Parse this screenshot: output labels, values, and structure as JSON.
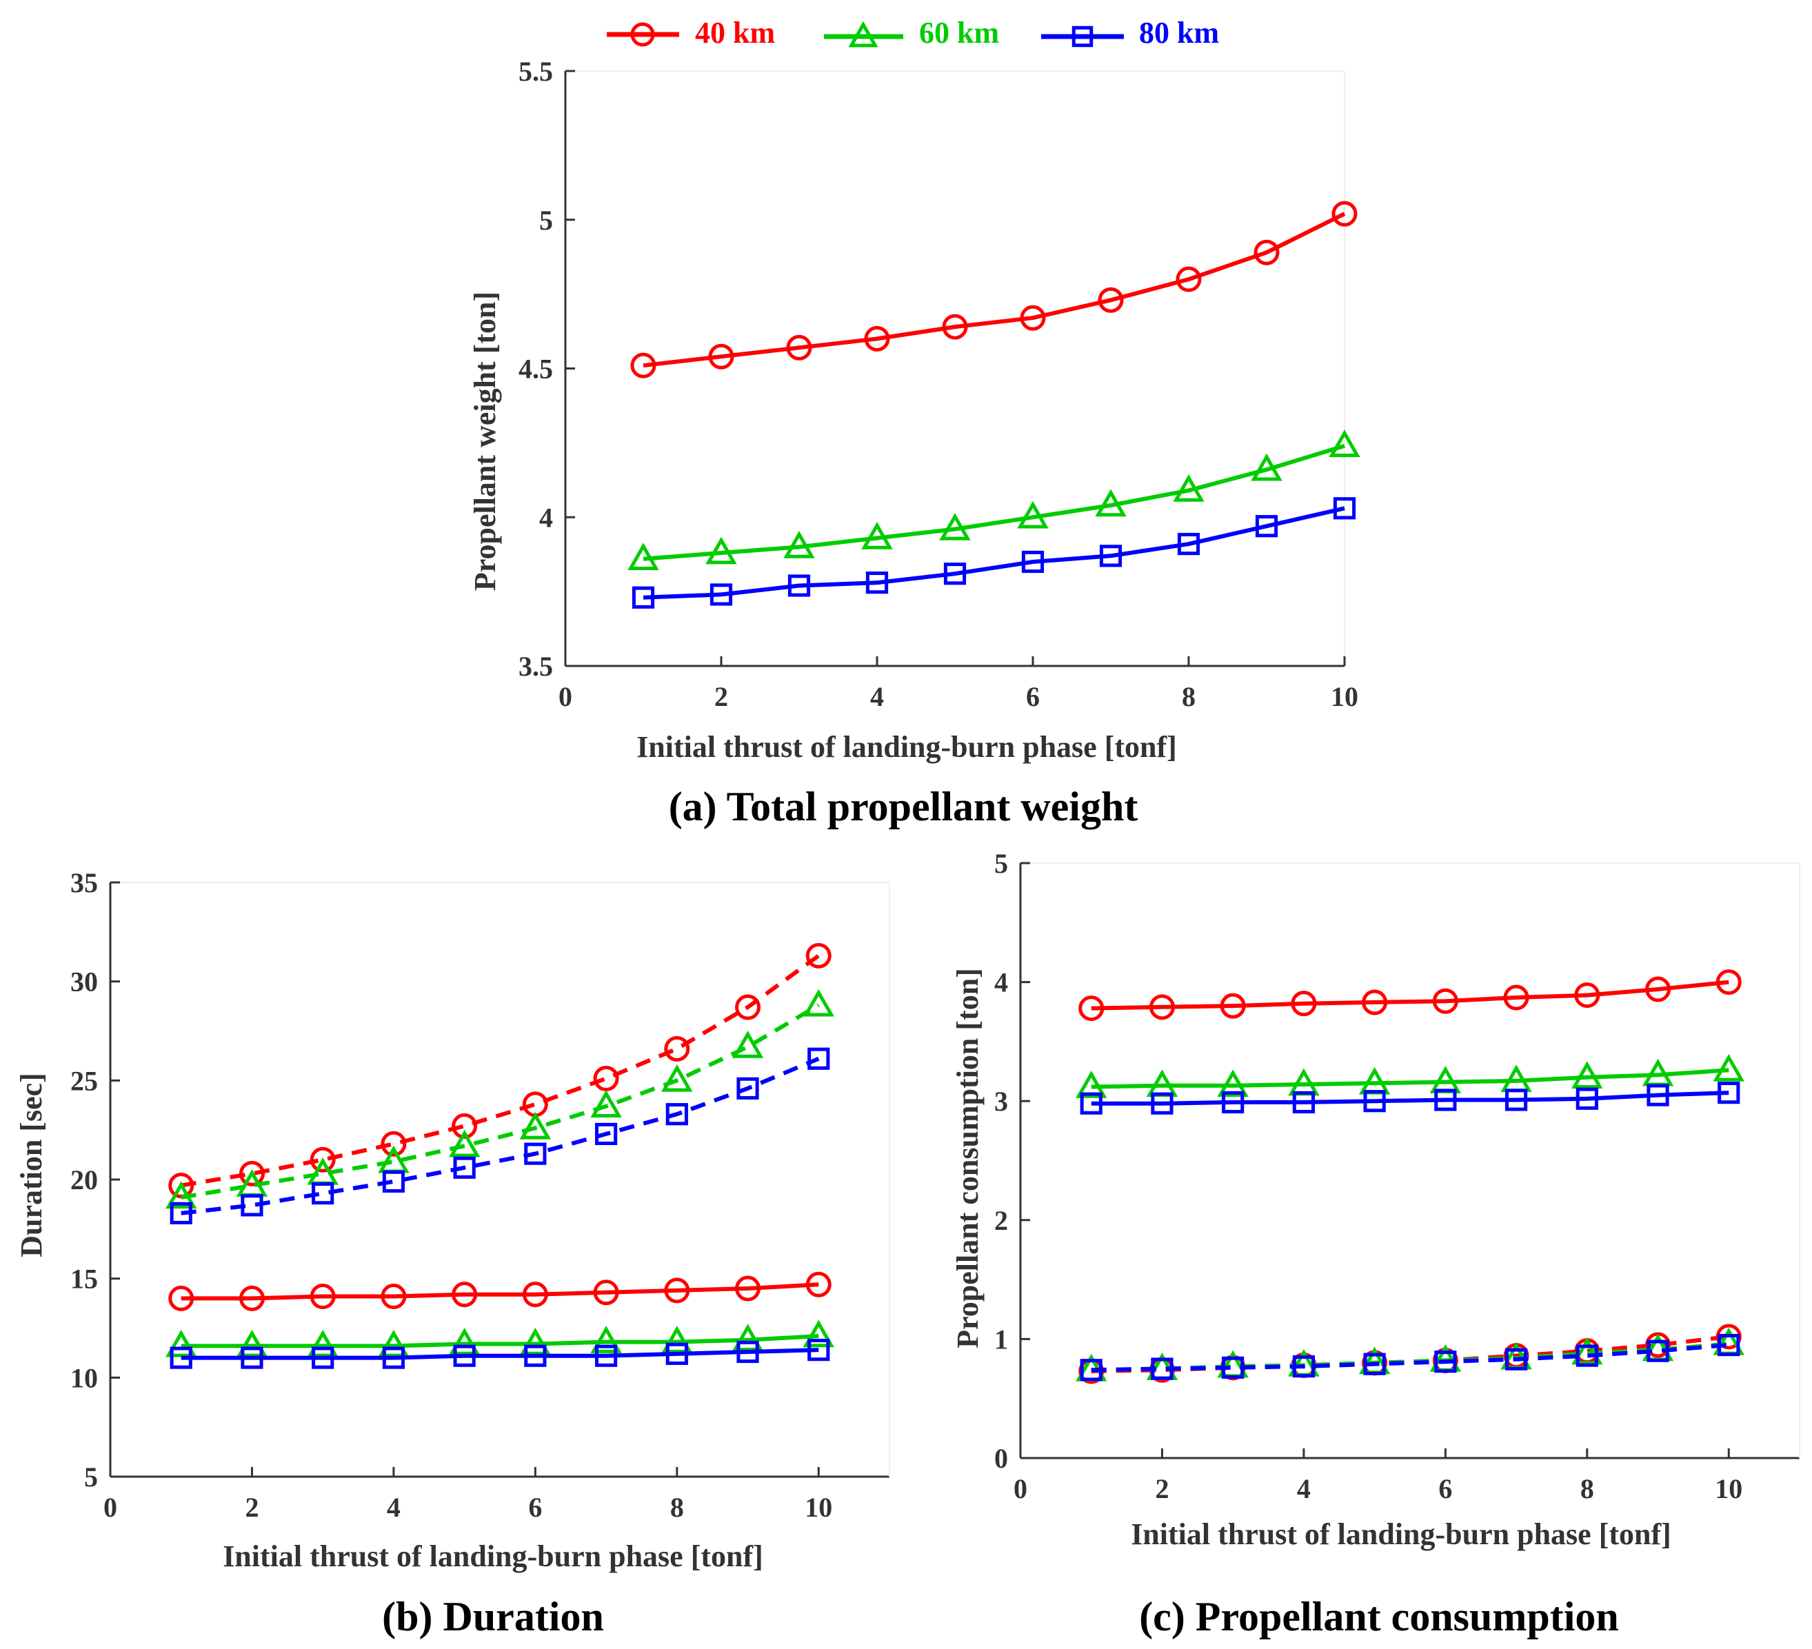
{
  "legend": {
    "entries": [
      {
        "label": "40 km",
        "color": "#ff0000",
        "marker": "circle"
      },
      {
        "label": "60 km",
        "color": "#00cc00",
        "marker": "triangle"
      },
      {
        "label": "80 km",
        "color": "#0000ff",
        "marker": "square"
      }
    ]
  },
  "chart_data": [
    {
      "id": "a",
      "type": "line",
      "caption": "(a) Total propellant weight",
      "xlabel": "Initial thrust of landing-burn phase [tonf]",
      "ylabel": "Propellant weight [ton]",
      "xlim": [
        0,
        10
      ],
      "ylim": [
        3.5,
        5.5
      ],
      "xticks": [
        0,
        2,
        4,
        6,
        8,
        10
      ],
      "yticks": [
        3.5,
        4,
        4.5,
        5,
        5.5
      ],
      "x": [
        1,
        2,
        3,
        4,
        5,
        6,
        7,
        8,
        9,
        10
      ],
      "series": [
        {
          "name": "40 km",
          "color": "#ff0000",
          "marker": "circle",
          "dash": "solid",
          "values": [
            4.51,
            4.54,
            4.57,
            4.6,
            4.64,
            4.67,
            4.73,
            4.8,
            4.89,
            5.02
          ]
        },
        {
          "name": "60 km",
          "color": "#00cc00",
          "marker": "triangle",
          "dash": "solid",
          "values": [
            3.86,
            3.88,
            3.9,
            3.93,
            3.96,
            4.0,
            4.04,
            4.09,
            4.16,
            4.24
          ]
        },
        {
          "name": "80 km",
          "color": "#0000ff",
          "marker": "square",
          "dash": "solid",
          "values": [
            3.73,
            3.74,
            3.77,
            3.78,
            3.81,
            3.85,
            3.87,
            3.91,
            3.97,
            4.03
          ]
        }
      ]
    },
    {
      "id": "b",
      "type": "line",
      "caption": "(b) Duration",
      "xlabel": "Initial thrust of landing-burn phase [tonf]",
      "ylabel": "Duration [sec]",
      "xlim": [
        0,
        11
      ],
      "ylim": [
        5,
        35
      ],
      "xticks": [
        0,
        2,
        4,
        6,
        8,
        10
      ],
      "yticks": [
        5,
        10,
        15,
        20,
        25,
        30,
        35
      ],
      "x": [
        1,
        2,
        3,
        4,
        5,
        6,
        7,
        8,
        9,
        10
      ],
      "series": [
        {
          "name": "40 km (dashed)",
          "color": "#ff0000",
          "marker": "circle",
          "dash": "dashed",
          "values": [
            19.7,
            20.3,
            21.0,
            21.8,
            22.7,
            23.8,
            25.1,
            26.6,
            28.7,
            31.3
          ]
        },
        {
          "name": "60 km (dashed)",
          "color": "#00cc00",
          "marker": "triangle",
          "dash": "dashed",
          "values": [
            19.1,
            19.7,
            20.3,
            20.9,
            21.7,
            22.6,
            23.7,
            25.0,
            26.7,
            28.8
          ]
        },
        {
          "name": "80 km (dashed)",
          "color": "#0000ff",
          "marker": "square",
          "dash": "dashed",
          "values": [
            18.3,
            18.7,
            19.3,
            19.9,
            20.6,
            21.3,
            22.3,
            23.3,
            24.6,
            26.1
          ]
        },
        {
          "name": "40 km",
          "color": "#ff0000",
          "marker": "circle",
          "dash": "solid",
          "values": [
            14.0,
            14.0,
            14.1,
            14.1,
            14.2,
            14.2,
            14.3,
            14.4,
            14.5,
            14.7
          ]
        },
        {
          "name": "60 km",
          "color": "#00cc00",
          "marker": "triangle",
          "dash": "solid",
          "values": [
            11.6,
            11.6,
            11.6,
            11.6,
            11.7,
            11.7,
            11.8,
            11.8,
            11.9,
            12.1
          ]
        },
        {
          "name": "80 km",
          "color": "#0000ff",
          "marker": "square",
          "dash": "solid",
          "values": [
            11.0,
            11.0,
            11.0,
            11.0,
            11.1,
            11.1,
            11.1,
            11.2,
            11.3,
            11.4
          ]
        }
      ]
    },
    {
      "id": "c",
      "type": "line",
      "caption": "(c) Propellant consumption",
      "xlabel": "Initial thrust of landing-burn phase [tonf]",
      "ylabel": "Propellant consumption [ton]",
      "xlim": [
        0,
        11
      ],
      "ylim": [
        0,
        5
      ],
      "xticks": [
        0,
        2,
        4,
        6,
        8,
        10
      ],
      "yticks": [
        0,
        1,
        2,
        3,
        4,
        5
      ],
      "x": [
        1,
        2,
        3,
        4,
        5,
        6,
        7,
        8,
        9,
        10
      ],
      "series": [
        {
          "name": "40 km",
          "color": "#ff0000",
          "marker": "circle",
          "dash": "solid",
          "values": [
            3.78,
            3.79,
            3.8,
            3.82,
            3.83,
            3.84,
            3.87,
            3.89,
            3.94,
            4.0
          ]
        },
        {
          "name": "60 km",
          "color": "#00cc00",
          "marker": "triangle",
          "dash": "solid",
          "values": [
            3.12,
            3.13,
            3.13,
            3.14,
            3.15,
            3.16,
            3.17,
            3.2,
            3.22,
            3.26
          ]
        },
        {
          "name": "80 km",
          "color": "#0000ff",
          "marker": "square",
          "dash": "solid",
          "values": [
            2.98,
            2.98,
            2.99,
            2.99,
            3.0,
            3.01,
            3.01,
            3.02,
            3.05,
            3.07
          ]
        },
        {
          "name": "40 km (dashed)",
          "color": "#ff0000",
          "marker": "circle",
          "dash": "dashed",
          "values": [
            0.73,
            0.74,
            0.76,
            0.78,
            0.8,
            0.82,
            0.86,
            0.9,
            0.95,
            1.02
          ]
        },
        {
          "name": "60 km (dashed)",
          "color": "#00cc00",
          "marker": "triangle",
          "dash": "dashed",
          "values": [
            0.74,
            0.75,
            0.77,
            0.78,
            0.8,
            0.82,
            0.84,
            0.88,
            0.91,
            0.96
          ]
        },
        {
          "name": "80 km (dashed)",
          "color": "#0000ff",
          "marker": "square",
          "dash": "dashed",
          "values": [
            0.74,
            0.75,
            0.76,
            0.77,
            0.79,
            0.81,
            0.83,
            0.86,
            0.9,
            0.95
          ]
        }
      ]
    }
  ]
}
